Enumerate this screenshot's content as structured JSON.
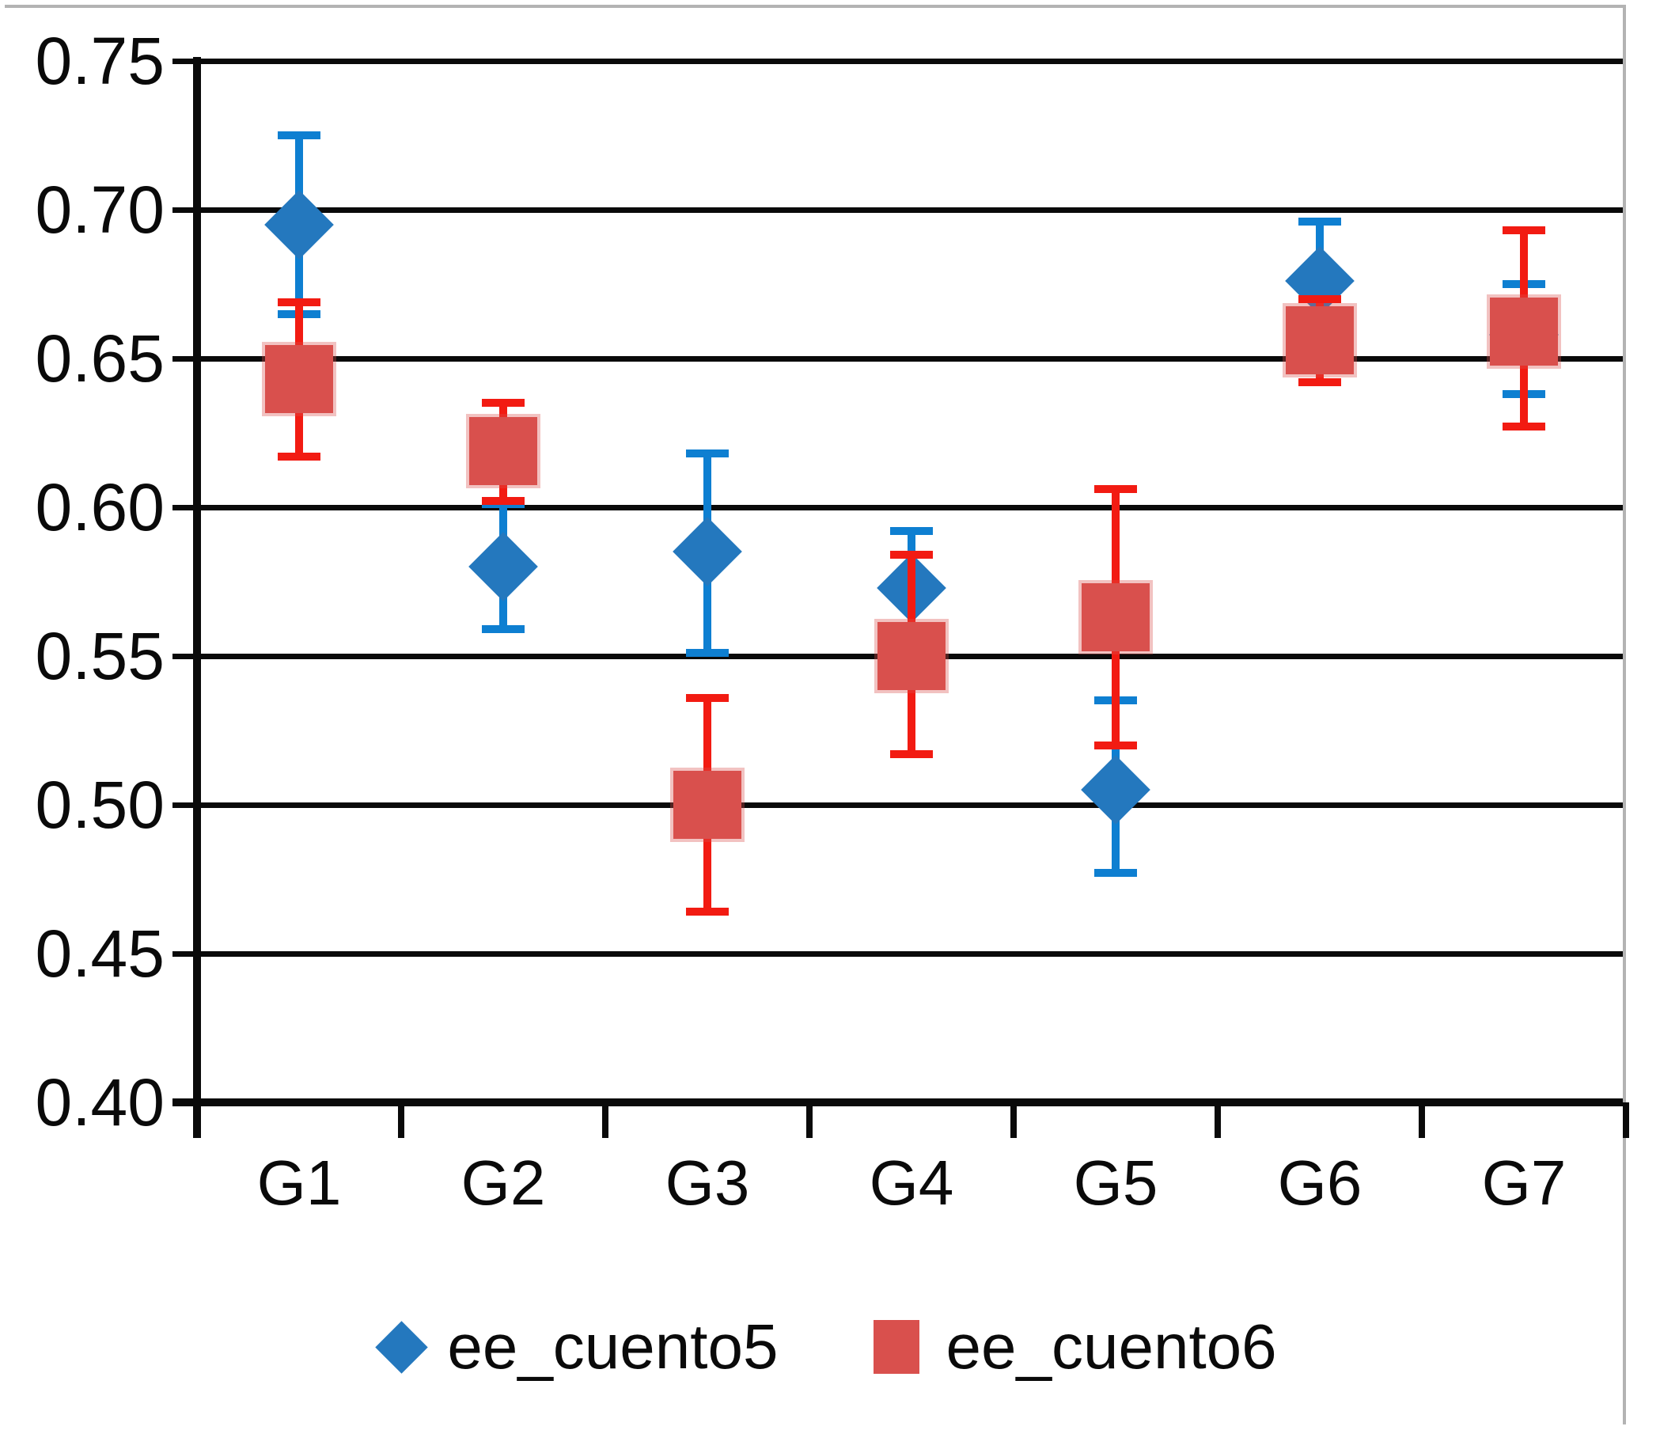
{
  "chart_data": {
    "type": "scatter",
    "subtype": "points-with-error-bars",
    "categories": [
      "G1",
      "G2",
      "G3",
      "G4",
      "G5",
      "G6",
      "G7"
    ],
    "y_tick_labels": [
      "0.75",
      "0.70",
      "0.65",
      "0.60",
      "0.55",
      "0.50",
      "0.45",
      "0.40"
    ],
    "y_tick_values": [
      0.75,
      0.7,
      0.65,
      0.6,
      0.55,
      0.5,
      0.45,
      0.4
    ],
    "ylim": [
      0.4,
      0.75
    ],
    "grid": "horizontal-on",
    "legend_position": "bottom",
    "title": "",
    "xlabel": "",
    "ylabel": "",
    "series": [
      {
        "name": "ee_cuento5",
        "marker": "diamond",
        "marker_color": "#2478BE",
        "errorbar_color": "#0E7FD1",
        "values": [
          0.695,
          0.58,
          0.585,
          0.573,
          0.505,
          0.676,
          0.658
        ],
        "error_low": [
          0.665,
          0.559,
          0.551,
          0.554,
          0.477,
          0.656,
          0.638
        ],
        "error_high": [
          0.725,
          0.601,
          0.618,
          0.592,
          0.535,
          0.696,
          0.675
        ]
      },
      {
        "name": "ee_cuento6",
        "marker": "square",
        "marker_color": "#D9504D",
        "errorbar_color": "#F21B12",
        "values": [
          0.643,
          0.619,
          0.5,
          0.55,
          0.563,
          0.656,
          0.659
        ],
        "error_low": [
          0.617,
          0.602,
          0.464,
          0.517,
          0.52,
          0.642,
          0.627
        ],
        "error_high": [
          0.669,
          0.635,
          0.536,
          0.584,
          0.606,
          0.67,
          0.693
        ]
      }
    ],
    "axis_color": "#0a0a0a",
    "frame_color": "#b3b3b3"
  }
}
